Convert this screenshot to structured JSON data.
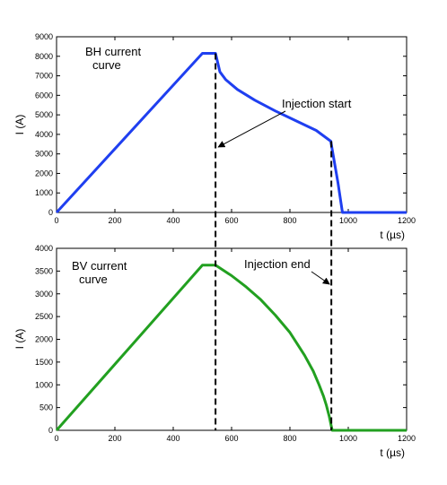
{
  "chart_data": [
    {
      "type": "line",
      "annotation": [
        "BH current",
        "curve"
      ],
      "xlabel": "t (µs)",
      "ylabel": "I (A)",
      "xlim": [
        0,
        1200
      ],
      "ylim": [
        0,
        9000
      ],
      "xticks": [
        0,
        200,
        400,
        600,
        800,
        1000,
        1200
      ],
      "yticks": [
        0,
        1000,
        2000,
        3000,
        4000,
        5000,
        6000,
        7000,
        8000,
        9000
      ],
      "grid": false,
      "series": [
        {
          "color": "#1f3ff0",
          "x": [
            0,
            500,
            545,
            560,
            580,
            620,
            680,
            750,
            820,
            890,
            940,
            965,
            980,
            1200
          ],
          "y": [
            0,
            8150,
            8150,
            7200,
            6800,
            6300,
            5750,
            5200,
            4700,
            4200,
            3650,
            1500,
            0,
            0
          ]
        }
      ]
    },
    {
      "type": "line",
      "annotation": [
        "BV current",
        "curve"
      ],
      "xlabel": "t (µs)",
      "ylabel": "I (A)",
      "xlim": [
        0,
        1200
      ],
      "ylim": [
        0,
        4000
      ],
      "xticks": [
        0,
        200,
        400,
        600,
        800,
        1000,
        1200
      ],
      "yticks": [
        0,
        500,
        1000,
        1500,
        2000,
        2500,
        3000,
        3500,
        4000
      ],
      "grid": false,
      "series": [
        {
          "color": "#22a020",
          "x": [
            0,
            500,
            545,
            600,
            650,
            700,
            750,
            800,
            850,
            880,
            900,
            915,
            925,
            935,
            942,
            945,
            1200
          ],
          "y": [
            0,
            3630,
            3630,
            3400,
            3150,
            2870,
            2530,
            2150,
            1650,
            1300,
            1000,
            750,
            550,
            300,
            80,
            0,
            0
          ]
        }
      ]
    }
  ],
  "annotations": {
    "injection_start": "Injection start",
    "injection_end": "Injection end",
    "start_time": 545,
    "end_time": 942
  }
}
